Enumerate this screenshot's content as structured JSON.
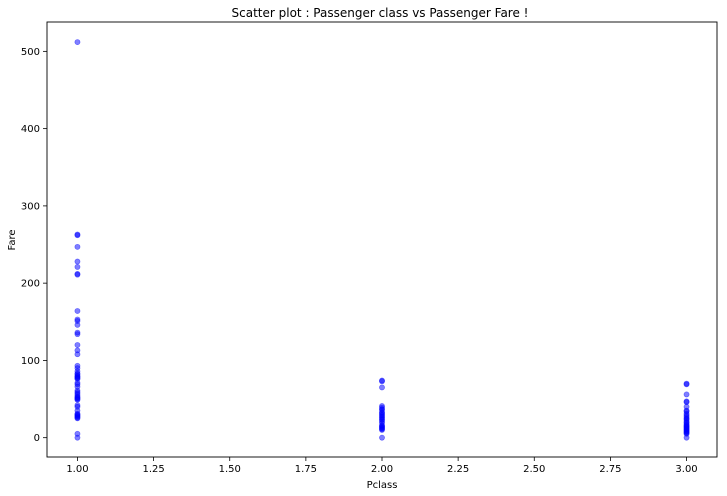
{
  "chart_data": {
    "type": "scatter",
    "title": "Scatter plot : Passenger class vs Passenger Fare !",
    "xlabel": "Pclass",
    "ylabel": "Fare",
    "xlim": [
      0.9,
      3.1
    ],
    "ylim": [
      -25,
      538
    ],
    "xticks": [
      1.0,
      1.25,
      1.5,
      1.75,
      2.0,
      2.25,
      2.5,
      2.75,
      3.0
    ],
    "xtick_labels": [
      "1.00",
      "1.25",
      "1.50",
      "1.75",
      "2.00",
      "2.25",
      "2.50",
      "2.75",
      "3.00"
    ],
    "yticks": [
      0,
      100,
      200,
      300,
      400,
      500
    ],
    "ytick_labels": [
      "0",
      "100",
      "200",
      "300",
      "400",
      "500"
    ],
    "grid": false,
    "marker_color": "#0000ff",
    "marker_alpha": 0.5,
    "series": [
      {
        "points": [
          [
            1,
            512
          ],
          [
            1,
            263
          ],
          [
            1,
            262
          ],
          [
            1,
            247
          ],
          [
            1,
            228
          ],
          [
            1,
            221
          ],
          [
            1,
            212
          ],
          [
            1,
            211
          ],
          [
            1,
            164
          ],
          [
            1,
            153
          ],
          [
            1,
            151
          ],
          [
            1,
            146
          ],
          [
            1,
            136
          ],
          [
            1,
            134
          ],
          [
            1,
            120
          ],
          [
            1,
            113
          ],
          [
            1,
            108
          ],
          [
            1,
            93
          ],
          [
            1,
            90
          ],
          [
            1,
            86
          ],
          [
            1,
            83
          ],
          [
            1,
            82
          ],
          [
            1,
            80
          ],
          [
            1,
            79
          ],
          [
            1,
            78
          ],
          [
            1,
            77
          ],
          [
            1,
            76
          ],
          [
            1,
            71
          ],
          [
            1,
            69
          ],
          [
            1,
            66
          ],
          [
            1,
            61
          ],
          [
            1,
            59
          ],
          [
            1,
            57
          ],
          [
            1,
            55
          ],
          [
            1,
            53
          ],
          [
            1,
            52
          ],
          [
            1,
            51
          ],
          [
            1,
            50
          ],
          [
            1,
            49
          ],
          [
            1,
            42
          ],
          [
            1,
            40
          ],
          [
            1,
            35
          ],
          [
            1,
            31
          ],
          [
            1,
            30
          ],
          [
            1,
            29
          ],
          [
            1,
            28
          ],
          [
            1,
            27
          ],
          [
            1,
            26
          ],
          [
            1,
            25
          ],
          [
            1,
            5
          ],
          [
            1,
            0
          ],
          [
            2,
            74
          ],
          [
            2,
            73
          ],
          [
            2,
            65
          ],
          [
            2,
            41
          ],
          [
            2,
            39
          ],
          [
            2,
            37
          ],
          [
            2,
            36
          ],
          [
            2,
            33
          ],
          [
            2,
            32
          ],
          [
            2,
            30
          ],
          [
            2,
            29
          ],
          [
            2,
            27
          ],
          [
            2,
            26
          ],
          [
            2,
            24
          ],
          [
            2,
            23
          ],
          [
            2,
            21
          ],
          [
            2,
            19
          ],
          [
            2,
            16
          ],
          [
            2,
            15
          ],
          [
            2,
            14
          ],
          [
            2,
            13
          ],
          [
            2,
            12
          ],
          [
            2,
            11
          ],
          [
            2,
            10
          ],
          [
            2,
            0
          ],
          [
            3,
            70
          ],
          [
            3,
            69
          ],
          [
            3,
            56
          ],
          [
            3,
            47
          ],
          [
            3,
            46
          ],
          [
            3,
            40
          ],
          [
            3,
            35
          ],
          [
            3,
            34
          ],
          [
            3,
            31
          ],
          [
            3,
            29
          ],
          [
            3,
            27
          ],
          [
            3,
            25
          ],
          [
            3,
            24
          ],
          [
            3,
            22
          ],
          [
            3,
            20
          ],
          [
            3,
            19
          ],
          [
            3,
            17
          ],
          [
            3,
            16
          ],
          [
            3,
            15
          ],
          [
            3,
            14
          ],
          [
            3,
            13
          ],
          [
            3,
            12
          ],
          [
            3,
            11
          ],
          [
            3,
            10
          ],
          [
            3,
            9
          ],
          [
            3,
            8
          ],
          [
            3,
            7
          ],
          [
            3,
            6
          ],
          [
            3,
            5
          ],
          [
            3,
            0
          ]
        ]
      }
    ]
  }
}
